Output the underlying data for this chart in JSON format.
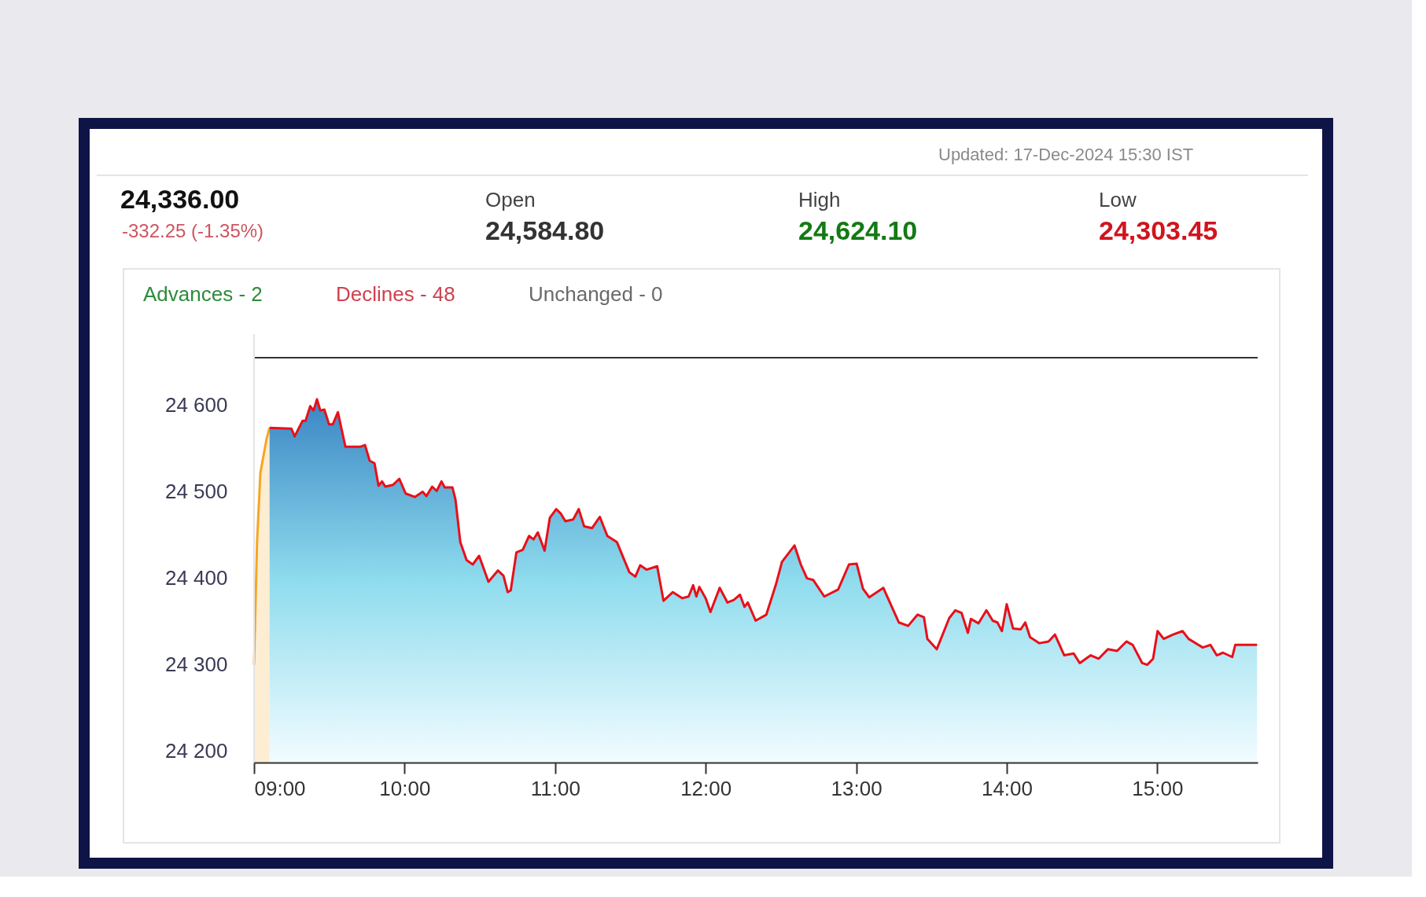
{
  "chart_data": {
    "type": "area",
    "annotations": [
      "Updated: 17-Dec-2024 15:30 IST",
      "24,336.00",
      "-332.25 (-1.35%)",
      "Open",
      "24,584.80",
      "High",
      "24,624.10",
      "Low",
      "24,303.45",
      "Advances - 2",
      "Declines - 48",
      "Unchanged - 0"
    ],
    "series": [
      {
        "color": "#f5a623",
        "x": [
          9.0,
          9.02,
          9.042,
          9.083,
          9.103
        ],
        "values": [
          24300,
          24442,
          24522,
          24561,
          24574
        ]
      },
      {
        "color": "#e8101a",
        "x": [
          9.103,
          9.248,
          9.27,
          9.29,
          9.322,
          9.342,
          9.373,
          9.395,
          9.418,
          9.44,
          9.467,
          9.498,
          9.523,
          9.557,
          9.607,
          9.705,
          9.737,
          9.768,
          9.8,
          9.827,
          9.85,
          9.872,
          9.923,
          9.965,
          10.007,
          10.068,
          10.12,
          10.145,
          10.183,
          10.213,
          10.245,
          10.267,
          10.318,
          10.338,
          10.37,
          10.412,
          10.453,
          10.495,
          10.557,
          10.62,
          10.657,
          10.685,
          10.705,
          10.743,
          10.785,
          10.827,
          10.857,
          10.885,
          10.93,
          10.965,
          11.007,
          11.037,
          11.068,
          11.12,
          11.157,
          11.193,
          11.245,
          11.297,
          11.347,
          11.41,
          11.493,
          11.533,
          11.565,
          11.607,
          11.678,
          11.72,
          11.782,
          11.845,
          11.887,
          11.917,
          11.938,
          11.958,
          12.0,
          12.032,
          12.093,
          12.145,
          12.187,
          12.228,
          12.258,
          12.28,
          12.332,
          12.403,
          12.467,
          12.507,
          12.59,
          12.632,
          12.673,
          12.715,
          12.788,
          12.88,
          12.952,
          13.003,
          13.045,
          13.087,
          13.18,
          13.283,
          13.345,
          13.408,
          13.45,
          13.473,
          13.535,
          13.618,
          13.658,
          13.7,
          13.742,
          13.762,
          13.813,
          13.865,
          13.907,
          13.938,
          13.968,
          14.0,
          14.042,
          14.093,
          14.123,
          14.155,
          14.217,
          14.278,
          14.32,
          14.382,
          14.445,
          14.485,
          14.558,
          14.61,
          14.672,
          14.733,
          14.795,
          14.837,
          14.9,
          14.933,
          14.972,
          15.002,
          15.043,
          15.105,
          15.168,
          15.208,
          15.302,
          15.353,
          15.395,
          15.437,
          15.498,
          15.518,
          15.663
        ],
        "values": [
          24574,
          24573,
          24564,
          24571,
          24582,
          24582,
          24599,
          24594,
          24607,
          24594,
          24595,
          24578,
          24578,
          24592,
          24552,
          24552,
          24554,
          24536,
          24533,
          24507,
          24512,
          24506,
          24508,
          24515,
          24498,
          24494,
          24500,
          24495,
          24506,
          24501,
          24512,
          24505,
          24505,
          24491,
          24442,
          24421,
          24416,
          24426,
          24396,
          24409,
          24403,
          24384,
          24386,
          24430,
          24433,
          24449,
          24445,
          24453,
          24432,
          24470,
          24480,
          24475,
          24466,
          24468,
          24480,
          24460,
          24458,
          24471,
          24449,
          24442,
          24407,
          24402,
          24415,
          24410,
          24414,
          24374,
          24384,
          24377,
          24379,
          24392,
          24379,
          24390,
          24377,
          24361,
          24389,
          24372,
          24375,
          24381,
          24367,
          24372,
          24351,
          24358,
          24393,
          24419,
          24438,
          24416,
          24400,
          24398,
          24379,
          24387,
          24416,
          24417,
          24388,
          24378,
          24389,
          24349,
          24345,
          24358,
          24355,
          24330,
          24318,
          24354,
          24363,
          24360,
          24337,
          24353,
          24348,
          24363,
          24351,
          24349,
          24339,
          24370,
          24342,
          24341,
          24349,
          24332,
          24325,
          24327,
          24335,
          24311,
          24313,
          24302,
          24311,
          24307,
          24318,
          24316,
          24327,
          24323,
          24302,
          24300,
          24307,
          24339,
          24330,
          24335,
          24339,
          24330,
          24320,
          24323,
          24311,
          24314,
          24309,
          24323,
          24323
        ]
      }
    ],
    "xlim": [
      9,
      15.667
    ],
    "xticks": [
      {
        "value": 9,
        "label": "09:00"
      },
      {
        "value": 10,
        "label": "10:00"
      },
      {
        "value": 11,
        "label": "11:00"
      },
      {
        "value": 12,
        "label": "12:00"
      },
      {
        "value": 13,
        "label": "13:00"
      },
      {
        "value": 14,
        "label": "14:00"
      },
      {
        "value": 15,
        "label": "15:00"
      }
    ],
    "ylim": [
      24187,
      24655
    ],
    "yticks": [
      {
        "value": 24200,
        "label": "24 200"
      },
      {
        "value": 24300,
        "label": "24 300"
      },
      {
        "value": 24400,
        "label": "24 400"
      },
      {
        "value": 24500,
        "label": "24 500"
      },
      {
        "value": 24600,
        "label": "24 600"
      }
    ],
    "grid": false,
    "marker": "none",
    "line_style": "solid"
  }
}
